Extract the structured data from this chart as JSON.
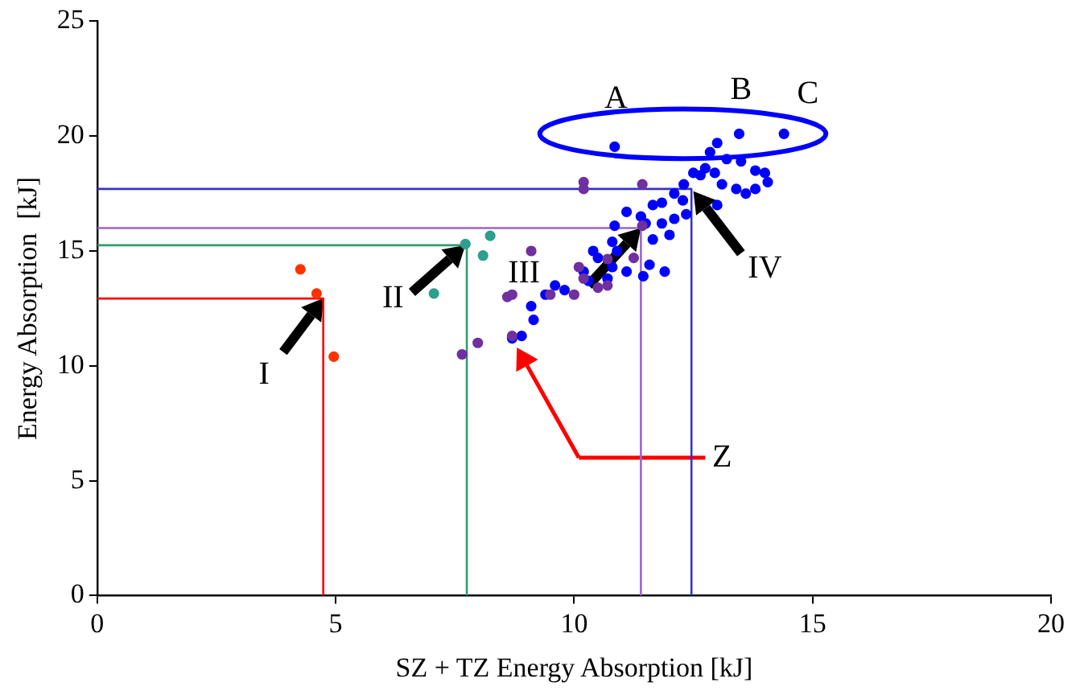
{
  "chart_data": {
    "type": "scatter",
    "xlabel": "SZ + TZ Energy Absorption [kJ]",
    "ylabel": "Energy Absorption  [kJ]",
    "xlim": [
      0,
      20
    ],
    "xticks": [
      0,
      5,
      10,
      15,
      20
    ],
    "ylim": [
      0,
      25
    ],
    "yticks": [
      0,
      5,
      10,
      15,
      20,
      25
    ],
    "grid": false,
    "legend": false,
    "marker": "circle",
    "series": [
      {
        "type": "line",
        "marker": "none",
        "color": "#ff0000",
        "x": [
          4.74,
          4.74,
          0
        ],
        "values": [
          0,
          12.93,
          12.93
        ]
      },
      {
        "type": "line",
        "marker": "none",
        "color": "#2e9e6e",
        "x": [
          7.75,
          7.75,
          0
        ],
        "values": [
          0,
          15.25,
          15.25
        ]
      },
      {
        "type": "line",
        "marker": "none",
        "color": "#9966cc",
        "x": [
          11.4,
          11.4,
          0
        ],
        "values": [
          0,
          16.0,
          16.0
        ]
      },
      {
        "type": "line",
        "marker": "none",
        "color": "#3333cc",
        "x": [
          12.46,
          12.46,
          0
        ],
        "values": [
          0,
          17.7,
          17.7
        ]
      },
      {
        "color": "#ff3300",
        "x": [
          4.26,
          4.6,
          4.96
        ],
        "values": [
          14.2,
          13.15,
          10.4
        ]
      },
      {
        "color": "#2e9e8e",
        "x": [
          7.72,
          8.24,
          8.09,
          7.06
        ],
        "values": [
          15.3,
          15.66,
          14.8,
          13.15
        ]
      },
      {
        "color": "#7030a0",
        "x": [
          7.65,
          7.98,
          8.6,
          8.7,
          9.1,
          10.2,
          10.2,
          11.43,
          10.7,
          11.25,
          11.43,
          9.5,
          10.1,
          10.2,
          10.5,
          10.7,
          10.0,
          8.7
        ],
        "values": [
          10.5,
          11.0,
          13.0,
          13.1,
          15.0,
          18.0,
          17.7,
          17.9,
          14.65,
          14.7,
          16.1,
          13.1,
          14.3,
          13.8,
          13.4,
          13.5,
          13.1,
          11.3
        ]
      },
      {
        "color": "#0000ff",
        "x": [
          10.85,
          13.46,
          14.4,
          8.7,
          8.9,
          9.15,
          9.1,
          9.4,
          9.6,
          9.8,
          10.2,
          10.5,
          10.9,
          11.5,
          10.8,
          10.85,
          11.1,
          11.4,
          11.65,
          11.84,
          12.1,
          12.3,
          12.5,
          12.65,
          12.75,
          12.95,
          13.1,
          13.4,
          13.6,
          13.8,
          14.0,
          14.06,
          13.0,
          12.35,
          12.1,
          11.84,
          12.0,
          11.65,
          11.58,
          11.9,
          11.45,
          11.1,
          10.7,
          10.3,
          10.8,
          10.4,
          12.85,
          13.0,
          12.28,
          13.2,
          13.5,
          13.8
        ],
        "values": [
          19.54,
          20.1,
          20.1,
          11.2,
          11.3,
          12.0,
          12.6,
          13.1,
          13.5,
          13.3,
          14.1,
          14.7,
          15.0,
          16.2,
          15.4,
          16.1,
          16.7,
          16.5,
          17.0,
          17.1,
          17.5,
          17.9,
          18.4,
          18.3,
          18.6,
          18.4,
          17.9,
          17.7,
          17.5,
          17.7,
          18.4,
          18.0,
          17.0,
          16.6,
          16.4,
          16.2,
          15.7,
          15.5,
          14.4,
          14.1,
          13.9,
          14.1,
          13.8,
          13.7,
          14.3,
          15.0,
          19.3,
          19.7,
          17.2,
          19.0,
          18.9,
          18.5
        ]
      }
    ],
    "annotations": [
      "A",
      "B",
      "C",
      "I",
      "II",
      "III",
      "IV",
      "Z"
    ]
  }
}
